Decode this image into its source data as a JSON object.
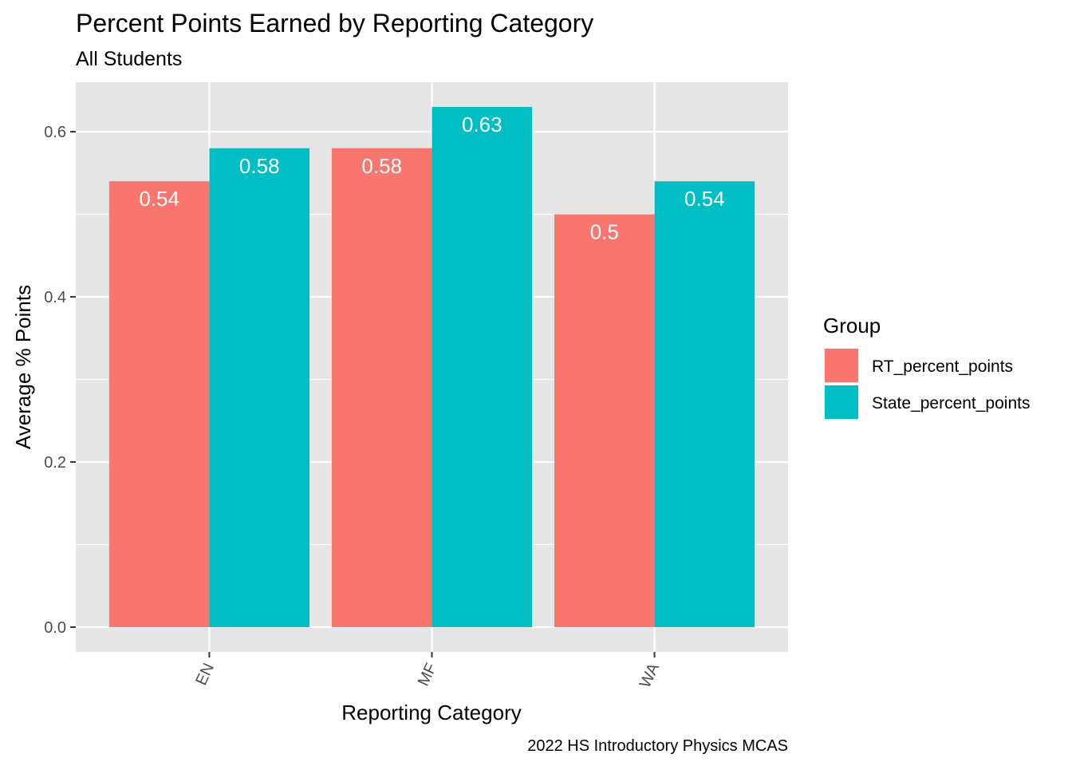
{
  "chart_data": {
    "type": "bar",
    "title": "Percent Points Earned by Reporting Category",
    "subtitle": "All Students",
    "xlabel": "Reporting Category",
    "ylabel": "Average % Points",
    "caption": "2022 HS Introductory Physics MCAS",
    "categories": [
      "EN",
      "MF",
      "WA"
    ],
    "series": [
      {
        "name": "RT_percent_points",
        "values": [
          0.54,
          0.58,
          0.5
        ],
        "labels": [
          "0.54",
          "0.58",
          "0.5"
        ],
        "color": "#F8766D"
      },
      {
        "name": "State_percent_points",
        "values": [
          0.58,
          0.63,
          0.54
        ],
        "labels": [
          "0.58",
          "0.63",
          "0.54"
        ],
        "color": "#00BFC4"
      }
    ],
    "ylim": [
      -0.03,
      0.66
    ],
    "yticks": [
      0.0,
      0.2,
      0.4,
      0.6
    ],
    "ytick_labels": [
      "0.0",
      "0.2",
      "0.4",
      "0.6"
    ],
    "grid": true,
    "legend": {
      "title": "Group",
      "position": "right"
    },
    "panel_background": "#E5E5E5",
    "grid_color": "#FFFFFF"
  }
}
